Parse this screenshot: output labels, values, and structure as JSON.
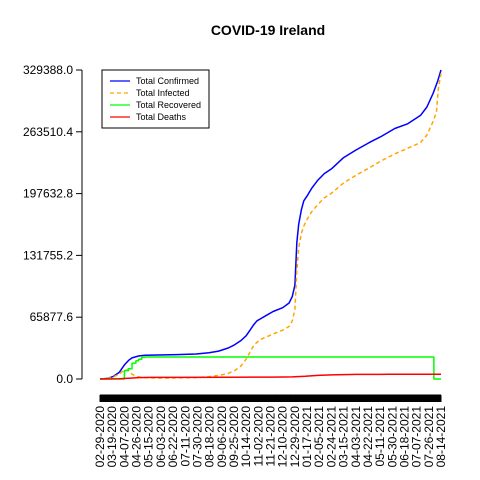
{
  "chart_data": {
    "type": "line",
    "title": "COVID-19 Ireland",
    "xlabel": "",
    "ylabel": "",
    "y_ticks": [
      "0.0",
      "65877.6",
      "131755.2",
      "197632.8",
      "263510.4",
      "329388.0"
    ],
    "x_tick_labels": [
      "02-29-2020",
      "03-19-2020",
      "04-07-2020",
      "04-26-2020",
      "05-15-2020",
      "06-03-2020",
      "06-22-2020",
      "07-11-2020",
      "07-30-2020",
      "08-18-2020",
      "09-06-2020",
      "09-25-2020",
      "10-14-2020",
      "11-02-2020",
      "11-21-2020",
      "12-10-2020",
      "12-29-2020",
      "01-17-2021",
      "02-05-2021",
      "02-24-2021",
      "03-15-2021",
      "04-03-2021",
      "04-22-2021",
      "05-11-2021",
      "05-30-2021",
      "06-18-2021",
      "07-07-2021",
      "07-26-2021",
      "08-14-2021"
    ],
    "x_days": [
      0,
      19,
      38,
      57,
      76,
      95,
      114,
      133,
      152,
      171,
      190,
      209,
      228,
      247,
      266,
      285,
      304,
      323,
      342,
      361,
      380,
      399,
      418,
      437,
      456,
      475,
      494,
      513,
      532
    ],
    "xlim": [
      0,
      532
    ],
    "ylim": [
      0,
      329388
    ],
    "grid": false,
    "legend_position": "top-left",
    "series": [
      {
        "name": "Total Confirmed",
        "color": "#0000ff",
        "dash": "",
        "x_days": [
          0,
          10,
          20,
          30,
          38,
          45,
          50,
          60,
          70,
          90,
          120,
          150,
          170,
          185,
          200,
          210,
          220,
          228,
          235,
          240,
          245,
          250,
          260,
          270,
          285,
          295,
          300,
          304,
          307,
          310,
          314,
          318,
          323,
          330,
          340,
          350,
          361,
          380,
          399,
          420,
          440,
          460,
          480,
          500,
          510,
          520,
          527,
          532
        ],
        "y": [
          0,
          500,
          2500,
          7000,
          15000,
          20000,
          22500,
          24500,
          25300,
          25600,
          26000,
          26700,
          28000,
          29700,
          33000,
          36500,
          41000,
          46000,
          53000,
          58000,
          62000,
          64000,
          68000,
          72000,
          76000,
          81000,
          88000,
          100000,
          145000,
          165000,
          180000,
          190000,
          195000,
          203000,
          212000,
          219000,
          224000,
          236000,
          244000,
          252000,
          259000,
          267000,
          272000,
          281000,
          290000,
          305000,
          318000,
          329388
        ]
      },
      {
        "name": "Total Infected",
        "color": "#ffa500",
        "dash": "4,3",
        "x_days": [
          0,
          10,
          20,
          30,
          38,
          45,
          50,
          55,
          60,
          70,
          80,
          100,
          130,
          150,
          170,
          190,
          200,
          210,
          220,
          228,
          240,
          250,
          260,
          270,
          285,
          295,
          300,
          304,
          307,
          310,
          314,
          318,
          323,
          330,
          340,
          350,
          361,
          380,
          399,
          420,
          440,
          460,
          480,
          500,
          510,
          520,
          525,
          528,
          532
        ],
        "y": [
          0,
          500,
          2000,
          5000,
          10000,
          9000,
          5000,
          3500,
          2200,
          1500,
          1200,
          1000,
          1300,
          1500,
          2500,
          4500,
          6000,
          9000,
          14000,
          21000,
          36000,
          42000,
          45000,
          48000,
          52000,
          56000,
          62000,
          74000,
          115000,
          140000,
          155000,
          163000,
          170000,
          178000,
          186000,
          193000,
          198000,
          209000,
          217000,
          225000,
          233000,
          240000,
          246000,
          252000,
          260000,
          275000,
          285000,
          310000,
          326000
        ]
      },
      {
        "name": "Total Recovered",
        "color": "#00ff00",
        "dash": "",
        "x_days": [
          0,
          36,
          38,
          42,
          44,
          48,
          50,
          54,
          56,
          60,
          65,
          70,
          80,
          520,
          521,
          532
        ],
        "y": [
          0,
          0,
          9000,
          9000,
          11000,
          11000,
          17000,
          17000,
          19500,
          21000,
          23000,
          23400,
          23400,
          23400,
          0,
          0
        ],
        "step": true
      },
      {
        "name": "Total Deaths",
        "color": "#ff0000",
        "dash": "",
        "x_days": [
          0,
          30,
          45,
          60,
          80,
          120,
          200,
          270,
          300,
          320,
          340,
          361,
          400,
          450,
          532
        ],
        "y": [
          0,
          200,
          900,
          1500,
          1700,
          1750,
          1800,
          2000,
          2200,
          2900,
          3800,
          4400,
          4900,
          5000,
          5030
        ]
      }
    ]
  }
}
